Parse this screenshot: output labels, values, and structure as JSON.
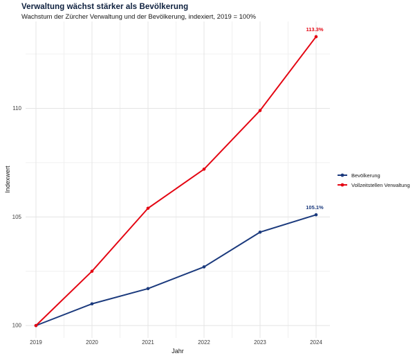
{
  "chart_data": {
    "type": "line",
    "title": "Verwaltung wächst stärker als Bevölkerung",
    "subtitle": "Wachstum der Zürcher Verwaltung und der Bevölkerung, indexiert, 2019 = 100%",
    "xlabel": "Jahr",
    "ylabel": "Indexwert",
    "x": [
      2019,
      2020,
      2021,
      2022,
      2023,
      2024
    ],
    "series": [
      {
        "name": "Bevölkerung",
        "color": "#1b3a7d",
        "values": [
          100,
          101.0,
          101.7,
          102.7,
          104.3,
          105.1
        ],
        "end_label": "105.1%"
      },
      {
        "name": "Vollzeitstellen Verwaltung",
        "color": "#e40613",
        "values": [
          100,
          102.5,
          105.4,
          107.2,
          109.9,
          113.3
        ],
        "end_label": "113.3%"
      }
    ],
    "x_ticks": [
      2019,
      2020,
      2021,
      2022,
      2023,
      2024
    ],
    "x_minor": [
      2019.5,
      2020.5,
      2021.5,
      2022.5,
      2023.5
    ],
    "y_ticks": [
      100,
      105,
      110
    ],
    "y_minor": [
      102.5,
      107.5,
      112.5
    ],
    "xlim": [
      2018.815,
      2024.247
    ],
    "ylim": [
      99.43,
      114.0
    ],
    "grid": "major+minor",
    "legend_position": "right"
  },
  "colors": {
    "title": "#0d1f3d",
    "grid_major": "#e4e4e4",
    "grid_minor": "#f0f0f0",
    "tick_label": "#3d3d3d"
  }
}
